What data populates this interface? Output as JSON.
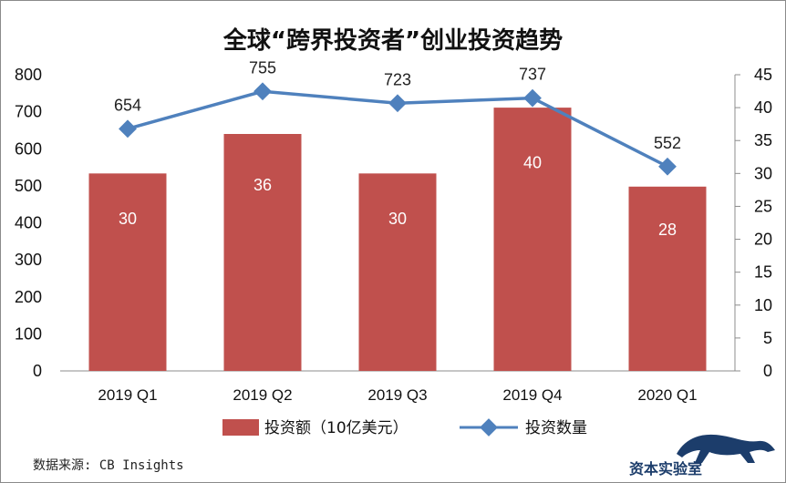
{
  "chart_data": {
    "type": "bar",
    "title": "全球“跨界投资者”创业投资趋势",
    "categories": [
      "2019 Q1",
      "2019 Q2",
      "2019 Q3",
      "2019 Q4",
      "2020 Q1"
    ],
    "series": [
      {
        "name": "投资额（10亿美元）",
        "type": "bar",
        "axis": "right",
        "values": [
          30,
          36,
          30,
          40,
          28
        ],
        "color": "#c0504d"
      },
      {
        "name": "投资数量",
        "type": "line",
        "axis": "left",
        "values": [
          654,
          755,
          723,
          737,
          552
        ],
        "color": "#4f81bd"
      }
    ],
    "y_left": {
      "ylim": [
        0,
        800
      ],
      "ticks": [
        0,
        100,
        200,
        300,
        400,
        500,
        600,
        700,
        800
      ]
    },
    "y_right": {
      "ylim": [
        0,
        45
      ],
      "ticks": [
        0,
        5,
        10,
        15,
        20,
        25,
        30,
        35,
        40,
        45
      ]
    },
    "legend_position": "bottom",
    "grid": false
  },
  "source": "数据来源: CB Insights",
  "watermark": "资本实验室"
}
